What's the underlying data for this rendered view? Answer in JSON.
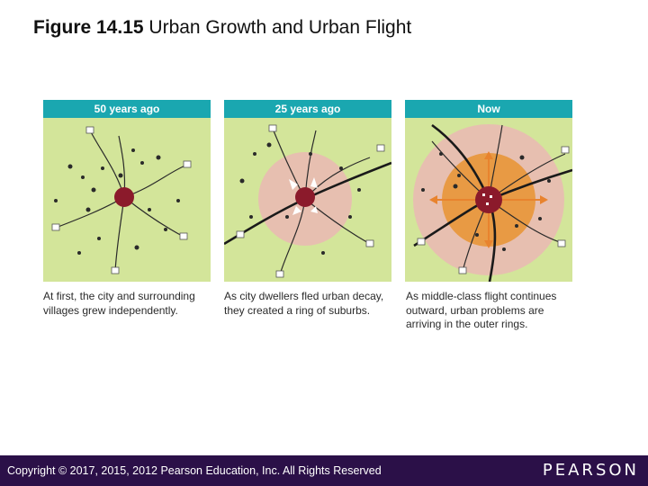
{
  "title": {
    "figure_label": "Figure 14.15",
    "text": "Urban Growth and Urban Flight"
  },
  "panels": [
    {
      "header": "50 years ago",
      "caption": "At first, the city and surrounding villages grew independently."
    },
    {
      "header": "25 years ago",
      "caption": "As city dwellers fled urban decay, they created a ring of suburbs."
    },
    {
      "header": "Now",
      "caption": "As middle-class flight continues outward, urban problems are arriving in the outer rings."
    }
  ],
  "colors": {
    "land": "#d3e59a",
    "header": "#1aa7b0",
    "city": "#8b1a2b",
    "suburb_ring": "#e7bfb0",
    "inner_ring": "#e89a44",
    "arrows": "#e8832e",
    "footer": "#2b1048"
  },
  "footer": {
    "copyright": "Copyright © 2017, 2015, 2012 Pearson Education, Inc. All Rights Reserved",
    "brand": "PEARSON"
  }
}
